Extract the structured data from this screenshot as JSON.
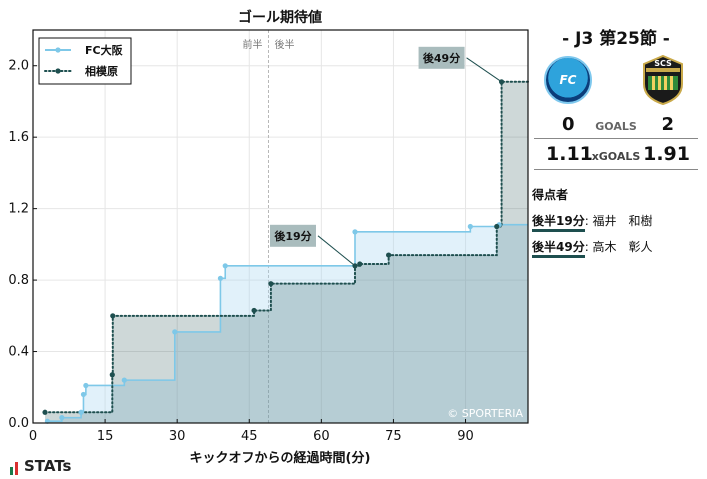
{
  "chart_data": {
    "type": "line",
    "title": "ゴール期待値",
    "xlabel": "キックオフからの経過時間(分)",
    "ylabel": "",
    "xlim": [
      0,
      103
    ],
    "ylim": [
      0,
      2.2
    ],
    "xticks": [
      0,
      15,
      30,
      45,
      60,
      75,
      90
    ],
    "yticks": [
      0.0,
      0.4,
      0.8,
      1.2,
      1.6,
      2.0
    ],
    "ytick_labels": [
      "0.0",
      "0.4",
      "0.8",
      "1.2",
      "1.6",
      "2.0"
    ],
    "halftime_minute": 49,
    "half_labels": [
      "前半",
      "後半"
    ],
    "legend_position": "top-left",
    "grid": true,
    "series": [
      {
        "name": "FC大阪",
        "color": "#7ec8e8",
        "style": "solid",
        "points": [
          [
            3,
            0.01
          ],
          [
            6,
            0.03
          ],
          [
            10,
            0.06
          ],
          [
            10.5,
            0.16
          ],
          [
            11,
            0.21
          ],
          [
            19,
            0.24
          ],
          [
            29.5,
            0.51
          ],
          [
            39,
            0.81
          ],
          [
            40,
            0.88
          ],
          [
            67,
            1.07
          ],
          [
            91,
            1.1
          ],
          [
            97,
            1.11
          ],
          [
            103,
            1.11
          ]
        ]
      },
      {
        "name": "相模原",
        "color": "#1e4f4f",
        "style": "dotted",
        "points": [
          [
            2.5,
            0.06
          ],
          [
            16.5,
            0.27
          ],
          [
            16.6,
            0.6
          ],
          [
            46,
            0.63
          ],
          [
            49.5,
            0.78
          ],
          [
            67,
            0.88
          ],
          [
            68,
            0.89
          ],
          [
            74,
            0.94
          ],
          [
            96.5,
            1.1
          ],
          [
            97.5,
            1.91
          ],
          [
            103,
            1.91
          ]
        ]
      }
    ],
    "annotations": [
      {
        "text": "後19分",
        "x": 67,
        "y": 0.88
      },
      {
        "text": "後49分",
        "x": 97.5,
        "y": 1.91
      }
    ],
    "copyright": "© SPORTERIA"
  },
  "panel": {
    "matchday": "- J3 第25節 -",
    "home_logo_text": "FC",
    "away_logo_text": "SCS",
    "home_goals": "0",
    "goals_label": "GOALS",
    "away_goals": "2",
    "home_xg": "1.11",
    "xg_label": "xGOALS",
    "away_xg": "1.91",
    "scorers_title": "得点者",
    "scorers": [
      {
        "time": "後半19分",
        "name": ": 福井　和樹"
      },
      {
        "time": "後半49分",
        "name": ": 高木　彰人"
      }
    ]
  },
  "footer": {
    "brand": "STATs"
  }
}
